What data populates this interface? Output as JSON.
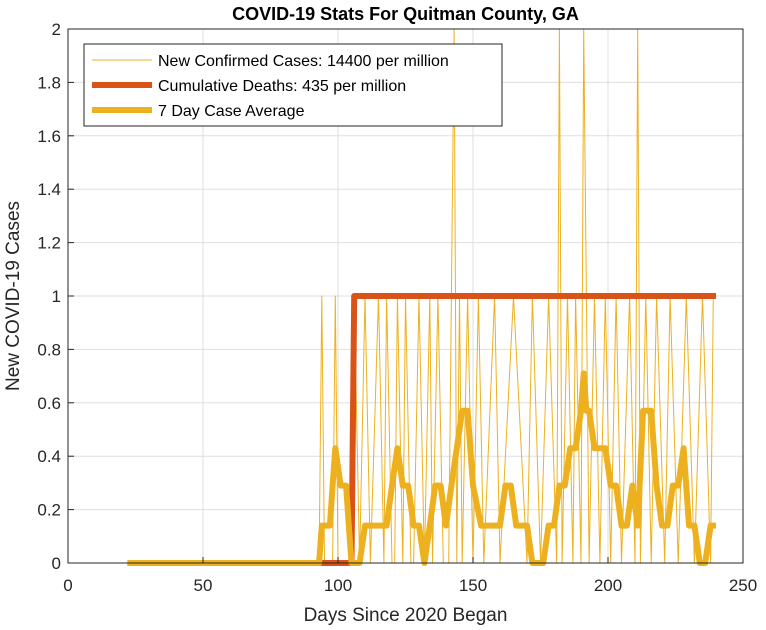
{
  "chart_data": {
    "type": "line",
    "title": "COVID-19 Stats For Quitman County, GA",
    "xlabel": "Days Since 2020 Began",
    "ylabel": "New COVID-19 Cases",
    "xlim": [
      0,
      250
    ],
    "ylim": [
      0,
      2
    ],
    "xticks": [
      "0",
      "50",
      "100",
      "150",
      "200",
      "250"
    ],
    "yticks": [
      "0",
      "0.2",
      "0.4",
      "0.6",
      "0.8",
      "1",
      "1.2",
      "1.4",
      "1.6",
      "1.8",
      "2"
    ],
    "grid": true,
    "legend_position": "top-left",
    "series": [
      {
        "name": "New Confirmed Cases: 14400 per million",
        "color": "#EDB120",
        "width": 1,
        "x": [
          22,
          93,
          94,
          95,
          98,
          99,
          100,
          101,
          105,
          106,
          108,
          110,
          112,
          115,
          117,
          118,
          120,
          121,
          122,
          124,
          125,
          127,
          128,
          130,
          132,
          134,
          135,
          137,
          139,
          141,
          142,
          143,
          144,
          145,
          146,
          148,
          150,
          152,
          154,
          158,
          160,
          165,
          170,
          172,
          175,
          178,
          181,
          182,
          183,
          185,
          187,
          188,
          190,
          191,
          192,
          193,
          195,
          197,
          199,
          201,
          203,
          205,
          208,
          210,
          211,
          212,
          214,
          216,
          218,
          221,
          223,
          226,
          229,
          232,
          235,
          238,
          239
        ],
        "y": [
          0,
          0,
          1,
          0,
          0,
          1,
          0,
          0,
          0,
          1,
          0,
          1,
          0,
          1,
          0,
          1,
          0,
          0,
          1,
          0,
          1,
          0,
          0,
          1,
          0,
          1,
          0,
          1,
          0,
          0,
          1,
          2,
          0,
          1,
          0,
          1,
          0,
          1,
          0,
          1,
          0,
          1,
          0,
          1,
          0,
          1,
          0,
          2,
          0,
          1,
          0,
          1,
          0,
          2,
          1,
          0,
          1,
          0,
          1,
          0,
          1,
          0,
          1,
          0,
          2,
          0,
          1,
          0,
          1,
          0,
          1,
          0,
          1,
          0,
          1,
          0,
          1
        ]
      },
      {
        "name": "Cumulative Deaths: 435 per million",
        "color": "#D95319",
        "width": 6,
        "x": [
          22,
          105,
          106,
          240
        ],
        "y": [
          0,
          0,
          1,
          1
        ]
      },
      {
        "name": "7 Day Case Average",
        "color": "#EDB120",
        "width": 6,
        "x": [
          22,
          93,
          94,
          97,
          98,
          99,
          101,
          102,
          103,
          104,
          105,
          107,
          108,
          110,
          112,
          114,
          116,
          118,
          120,
          122,
          124,
          126,
          128,
          130,
          132,
          134,
          136,
          138,
          140,
          142,
          144,
          146,
          148,
          150,
          153,
          156,
          158,
          160,
          162,
          164,
          166,
          168,
          170,
          172,
          174,
          176,
          178,
          180,
          182,
          184,
          186,
          188,
          190,
          191,
          192,
          193,
          195,
          197,
          199,
          201,
          203,
          205,
          207,
          209,
          211,
          213,
          215,
          216,
          218,
          220,
          222,
          224,
          226,
          228,
          230,
          232,
          234,
          236,
          238,
          240
        ],
        "y": [
          0,
          0,
          0.14,
          0.14,
          0.29,
          0.43,
          0.29,
          0.29,
          0.29,
          0.14,
          0,
          0,
          0,
          0.14,
          0.14,
          0.14,
          0.14,
          0.14,
          0.29,
          0.43,
          0.29,
          0.29,
          0.14,
          0.14,
          0,
          0.14,
          0.29,
          0.29,
          0.14,
          0.29,
          0.43,
          0.57,
          0.57,
          0.29,
          0.14,
          0.14,
          0.14,
          0.14,
          0.29,
          0.29,
          0.14,
          0.14,
          0.14,
          0,
          0,
          0,
          0.14,
          0.14,
          0.29,
          0.29,
          0.43,
          0.43,
          0.57,
          0.71,
          0.57,
          0.57,
          0.43,
          0.43,
          0.43,
          0.29,
          0.29,
          0.14,
          0.14,
          0.29,
          0.14,
          0.57,
          0.57,
          0.57,
          0.29,
          0.14,
          0.14,
          0.29,
          0.29,
          0.43,
          0.14,
          0.14,
          0,
          0,
          0.14,
          0.14
        ]
      }
    ]
  }
}
